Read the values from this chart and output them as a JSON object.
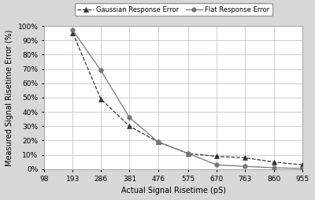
{
  "x_ticks": [
    98,
    193,
    286,
    381,
    476,
    575,
    670,
    763,
    860,
    955
  ],
  "x_data": [
    193,
    286,
    381,
    476,
    575,
    670,
    763,
    860,
    955
  ],
  "gaussian_y": [
    0.95,
    0.49,
    0.3,
    0.19,
    0.11,
    0.09,
    0.08,
    0.05,
    0.03
  ],
  "flat_y": [
    0.97,
    0.69,
    0.36,
    0.19,
    0.11,
    0.03,
    0.02,
    0.01,
    0.005
  ],
  "xlabel": "Actual Signal Risetime (pS)",
  "ylabel": "Measured Signal Risetime Error (%)",
  "gaussian_legend": "▲ Gaussian Response Error",
  "flat_legend": "● Flat Response Error",
  "ylim": [
    0,
    1.0
  ],
  "xlim": [
    98,
    955
  ],
  "grid_color": "#c8c8c8",
  "line_color_gauss": "#555555",
  "line_color_flat": "#888888",
  "background_color": "#d8d8d8",
  "plot_bg": "#ffffff",
  "tick_fontsize": 6.5,
  "label_fontsize": 7.0,
  "legend_fontsize": 6.0
}
